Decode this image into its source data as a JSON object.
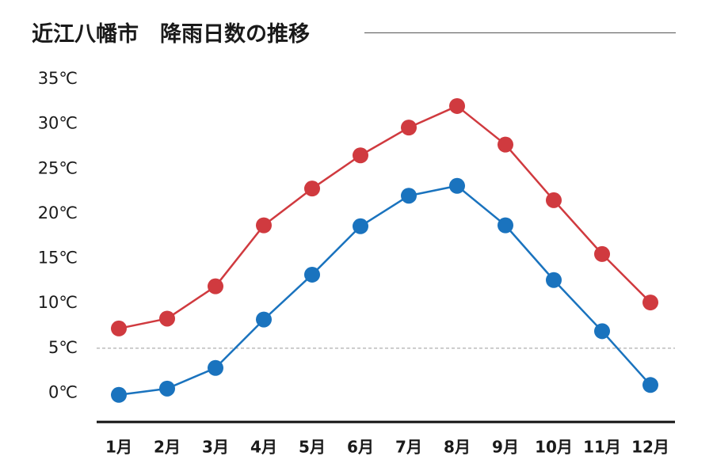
{
  "chart_data": {
    "type": "line",
    "title": "近江八幡市　降雨日数の推移",
    "categories": [
      "1月",
      "2月",
      "3月",
      "4月",
      "5月",
      "6月",
      "7月",
      "8月",
      "9月",
      "10月",
      "11月",
      "12月"
    ],
    "y_tick_labels": [
      "0℃",
      "5℃",
      "10℃",
      "15℃",
      "20℃",
      "25℃",
      "30℃",
      "35℃"
    ],
    "y_ticks": [
      0,
      5,
      10,
      15,
      20,
      25,
      30,
      35
    ],
    "ylim": [
      -2.5,
      37
    ],
    "reference_line": 5,
    "series": [
      {
        "color": "#d03a3f",
        "values": [
          7.2,
          8.3,
          11.9,
          18.7,
          22.8,
          26.5,
          29.6,
          32.0,
          27.7,
          21.5,
          15.5,
          10.1
        ]
      },
      {
        "color": "#1a73be",
        "values": [
          -0.2,
          0.5,
          2.8,
          8.2,
          13.2,
          18.6,
          22.0,
          23.1,
          18.7,
          12.6,
          6.9,
          0.9
        ]
      }
    ],
    "grid": false,
    "legend": "none"
  }
}
